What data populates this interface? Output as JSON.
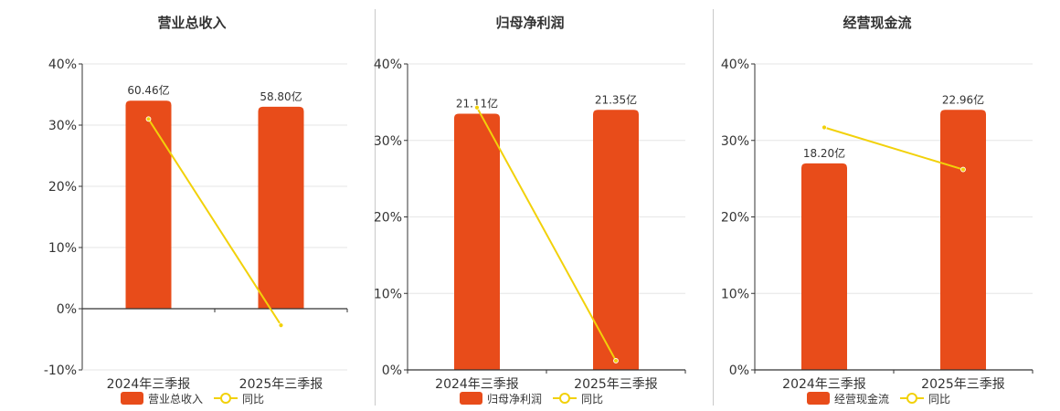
{
  "colors": {
    "bar": "#E84C1A",
    "line": "#F2D10A",
    "grid": "#e6e6e6",
    "axis": "#333333",
    "text": "#333333"
  },
  "chart_data": [
    {
      "type": "bar",
      "title": "营业总收入",
      "categories": [
        "2024年三季报",
        "2025年三季报"
      ],
      "bar_series": {
        "name": "营业总收入",
        "heights": [
          34,
          33
        ],
        "labels": [
          "60.46亿",
          "58.80亿"
        ]
      },
      "line_series": {
        "name": "同比",
        "values": [
          31,
          -2.7
        ]
      },
      "ylim": [
        -10,
        40
      ],
      "yticks": [
        -10,
        0,
        10,
        20,
        30,
        40
      ],
      "ytick_labels": [
        "-10%",
        "0%",
        "10%",
        "20%",
        "30%",
        "40%"
      ],
      "grid": true,
      "legend": "bottom"
    },
    {
      "type": "bar",
      "title": "归母净利润",
      "categories": [
        "2024年三季报",
        "2025年三季报"
      ],
      "bar_series": {
        "name": "归母净利润",
        "heights": [
          33.5,
          34
        ],
        "labels": [
          "21.11亿",
          "21.35亿"
        ]
      },
      "line_series": {
        "name": "同比",
        "values": [
          34.3,
          1.2
        ]
      },
      "ylim": [
        0,
        40
      ],
      "yticks": [
        0,
        10,
        20,
        30,
        40
      ],
      "ytick_labels": [
        "0%",
        "10%",
        "20%",
        "30%",
        "40%"
      ],
      "grid": true,
      "legend": "bottom"
    },
    {
      "type": "bar",
      "title": "经营现金流",
      "categories": [
        "2024年三季报",
        "2025年三季报"
      ],
      "bar_series": {
        "name": "经营现金流",
        "heights": [
          27,
          34
        ],
        "labels": [
          "18.20亿",
          "22.96亿"
        ]
      },
      "line_series": {
        "name": "同比",
        "values": [
          31.7,
          26.2
        ]
      },
      "ylim": [
        0,
        40
      ],
      "yticks": [
        0,
        10,
        20,
        30,
        40
      ],
      "ytick_labels": [
        "0%",
        "10%",
        "20%",
        "30%",
        "40%"
      ],
      "grid": true,
      "legend": "bottom"
    }
  ]
}
